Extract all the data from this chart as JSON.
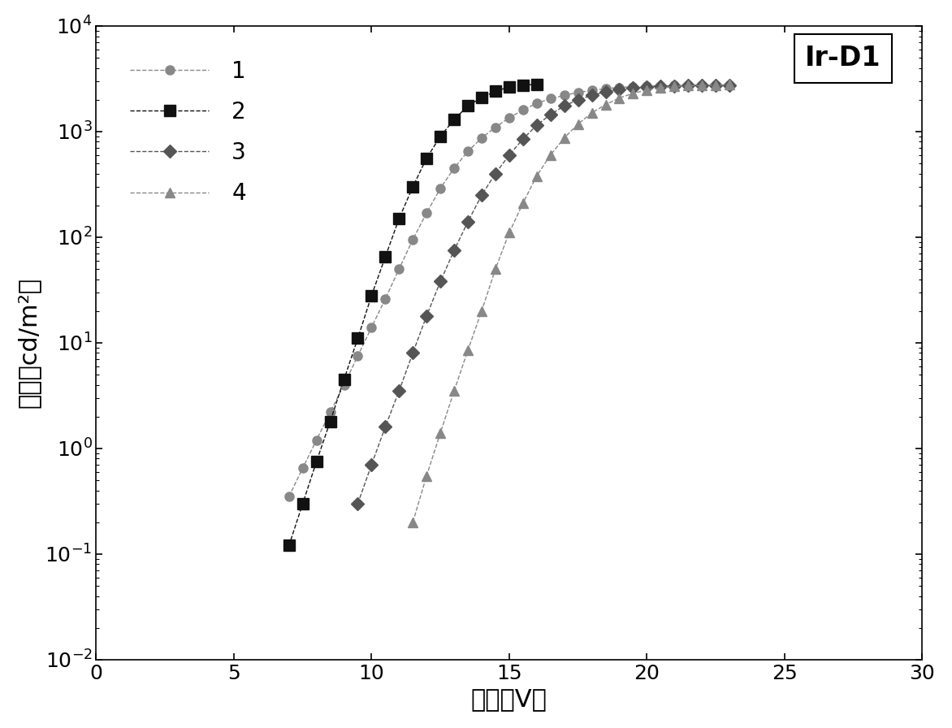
{
  "title": "Ir-D1",
  "xlabel": "电压（V）",
  "ylabel": "亮度（cd/m²）",
  "xlim": [
    0,
    30
  ],
  "ylim_log": [
    -2,
    4
  ],
  "series": [
    {
      "label": "1",
      "color": "#888888",
      "marker": "o",
      "markersize": 8,
      "x": [
        7.0,
        7.5,
        8.0,
        8.5,
        9.0,
        9.5,
        10.0,
        10.5,
        11.0,
        11.5,
        12.0,
        12.5,
        13.0,
        13.5,
        14.0,
        14.5,
        15.0,
        15.5,
        16.0,
        16.5,
        17.0,
        17.5,
        18.0,
        18.5,
        19.0,
        19.5,
        20.0,
        20.5,
        21.0,
        21.5,
        22.0,
        22.5,
        23.0
      ],
      "y": [
        0.35,
        0.65,
        1.2,
        2.2,
        4.0,
        7.5,
        14,
        26,
        50,
        95,
        170,
        290,
        450,
        650,
        870,
        1100,
        1350,
        1600,
        1850,
        2050,
        2200,
        2350,
        2450,
        2550,
        2620,
        2660,
        2690,
        2710,
        2720,
        2725,
        2730,
        2730,
        2730
      ]
    },
    {
      "label": "2",
      "color": "#111111",
      "marker": "s",
      "markersize": 10,
      "x": [
        7.0,
        7.5,
        8.0,
        8.5,
        9.0,
        9.5,
        10.0,
        10.5,
        11.0,
        11.5,
        12.0,
        12.5,
        13.0,
        13.5,
        14.0,
        14.5,
        15.0,
        15.5,
        16.0
      ],
      "y": [
        0.12,
        0.3,
        0.75,
        1.8,
        4.5,
        11,
        28,
        65,
        150,
        300,
        560,
        900,
        1300,
        1750,
        2100,
        2400,
        2650,
        2750,
        2800
      ]
    },
    {
      "label": "3",
      "color": "#555555",
      "marker": "D",
      "markersize": 8,
      "x": [
        9.5,
        10.0,
        10.5,
        11.0,
        11.5,
        12.0,
        12.5,
        13.0,
        13.5,
        14.0,
        14.5,
        15.0,
        15.5,
        16.0,
        16.5,
        17.0,
        17.5,
        18.0,
        18.5,
        19.0,
        19.5,
        20.0,
        20.5,
        21.0,
        21.5,
        22.0,
        22.5,
        23.0
      ],
      "y": [
        0.3,
        0.7,
        1.6,
        3.5,
        8,
        18,
        38,
        75,
        140,
        250,
        400,
        600,
        850,
        1150,
        1450,
        1750,
        2000,
        2200,
        2380,
        2500,
        2580,
        2640,
        2680,
        2710,
        2725,
        2730,
        2740,
        2740
      ]
    },
    {
      "label": "4",
      "color": "#888888",
      "marker": "^",
      "markersize": 9,
      "x": [
        11.5,
        12.0,
        12.5,
        13.0,
        13.5,
        14.0,
        14.5,
        15.0,
        15.5,
        16.0,
        16.5,
        17.0,
        17.5,
        18.0,
        18.5,
        19.0,
        19.5,
        20.0,
        20.5,
        21.0,
        21.5,
        22.0,
        22.5,
        23.0
      ],
      "y": [
        0.2,
        0.55,
        1.4,
        3.5,
        8.5,
        20,
        50,
        110,
        210,
        380,
        600,
        870,
        1180,
        1500,
        1800,
        2080,
        2300,
        2480,
        2600,
        2680,
        2720,
        2740,
        2760,
        2770
      ]
    }
  ],
  "background_color": "#ffffff",
  "legend_loc": "upper left",
  "annotation": "Ir-D1"
}
